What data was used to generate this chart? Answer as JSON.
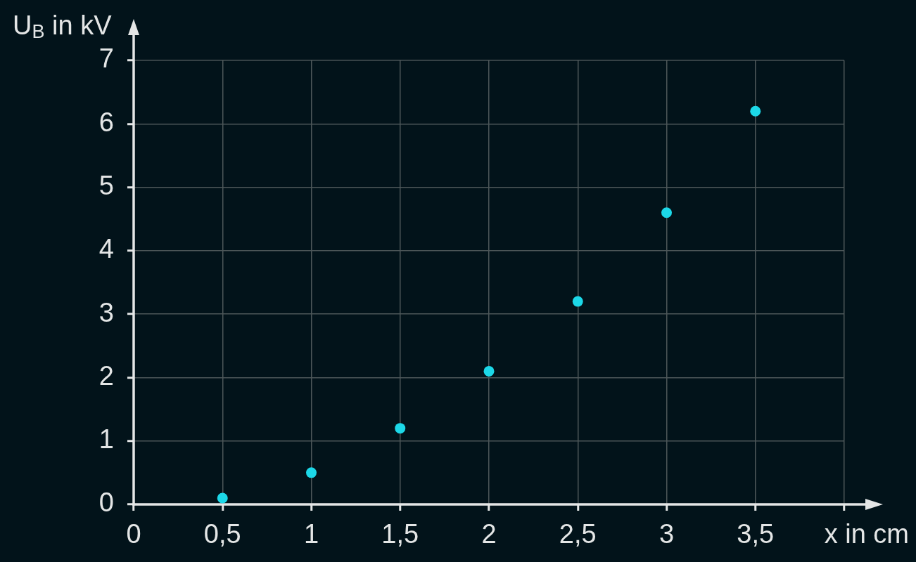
{
  "chart_data": {
    "type": "scatter",
    "xlabel": "x in cm",
    "ylabel": "U$_{B}$ in kV",
    "x": [
      0.5,
      1,
      1.5,
      2,
      2.5,
      3,
      3.5
    ],
    "series": [
      {
        "color": "#1cd8e8",
        "values": [
          0.1,
          0.5,
          1.2,
          2.1,
          3.2,
          4.6,
          6.2
        ]
      }
    ],
    "xlim": [
      0,
      4
    ],
    "xticks": [
      0,
      {
        "value": 0.5,
        "label": "0,5"
      },
      1,
      {
        "value": 1.5,
        "label": "1,5"
      },
      2,
      {
        "value": 2.5,
        "label": "2,5"
      },
      3,
      {
        "value": 3.5,
        "label": "3,5"
      },
      {
        "value": 4,
        "label": null
      }
    ],
    "ylim": [
      0,
      7
    ],
    "yticks": [
      0,
      1,
      2,
      3,
      4,
      5,
      6,
      7
    ],
    "grid": true,
    "marker": "circle"
  }
}
